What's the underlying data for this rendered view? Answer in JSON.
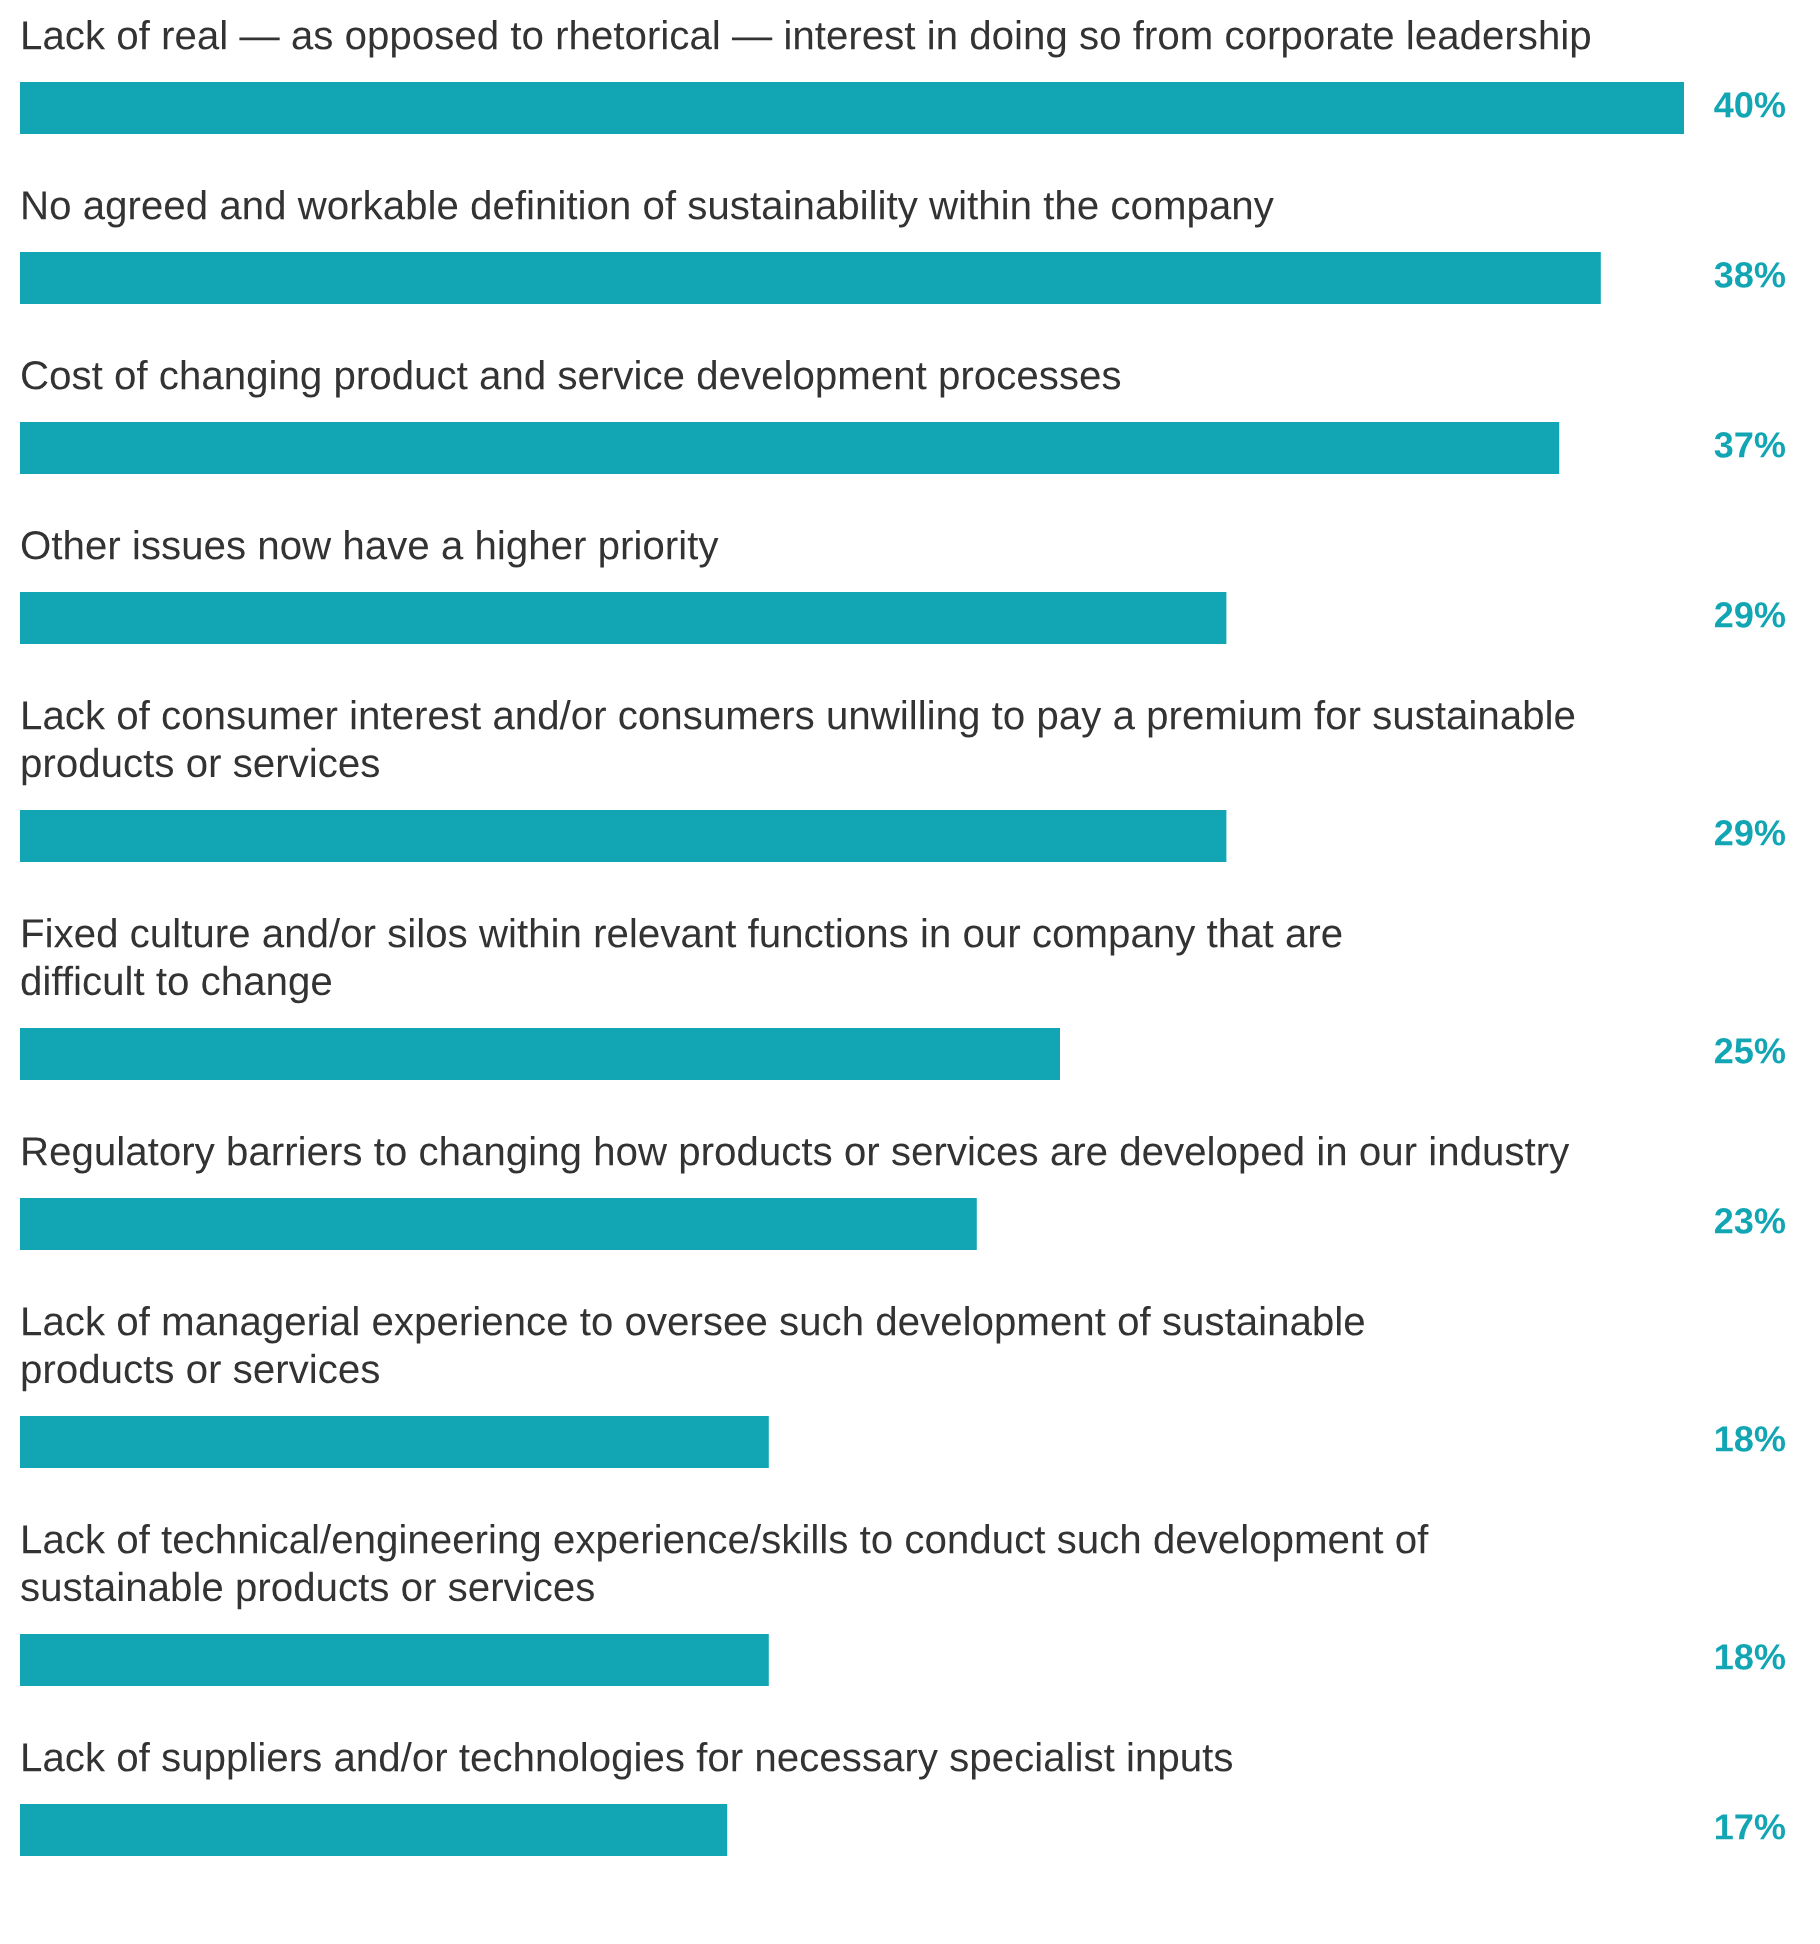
{
  "chart_data": {
    "type": "bar",
    "orientation": "horizontal",
    "categories": [
      "Lack of real — as opposed to rhetorical — interest in doing so from corporate leadership",
      "No agreed and workable definition of sustainability within the company",
      "Cost of changing product and service development processes",
      "Other issues now have a higher priority",
      "Lack of consumer interest and/or consumers unwilling to pay a premium for sustainable\nproducts or services",
      "Fixed culture and/or silos within relevant functions in our company that are\ndifficult to change",
      "Regulatory barriers to changing how products or services are developed in our industry",
      "Lack of managerial experience to oversee such development of sustainable\nproducts or services",
      "Lack of technical/engineering experience/skills to conduct such development of\nsustainable products or services",
      "Lack of suppliers and/or technologies for necessary specialist inputs"
    ],
    "values": [
      40,
      38,
      37,
      29,
      29,
      25,
      23,
      18,
      18,
      17
    ],
    "value_labels": [
      "40%",
      "38%",
      "37%",
      "29%",
      "29%",
      "25%",
      "23%",
      "18%",
      "18%",
      "17%"
    ],
    "color": "#12a6b4"
  }
}
